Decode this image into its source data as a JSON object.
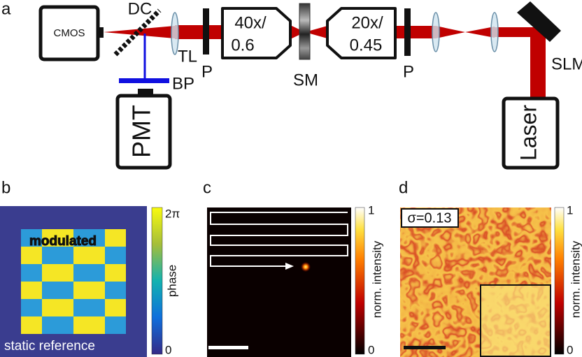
{
  "panel_labels": [
    "a",
    "b",
    "c",
    "d"
  ],
  "setup": {
    "cmos": "CMOS",
    "dc": "DC",
    "tl": "TL",
    "p1": "P",
    "objective1": [
      "40x/",
      "0.6"
    ],
    "sm": "SM",
    "objective2": [
      "20x/",
      "0.45"
    ],
    "p2": "P",
    "slm": "SLM",
    "bp": "BP",
    "pmt": "PMT",
    "laser": "Laser"
  },
  "panel_b": {
    "overlay": "modulated",
    "reference": "static reference",
    "colorbar": {
      "label": "phase",
      "max": "2π",
      "min": 0
    }
  },
  "panel_c": {
    "colorbar": {
      "label": "norm. intensity",
      "max": 1,
      "min": 0
    }
  },
  "panel_d": {
    "annotation": "σ=0.13",
    "colorbar": {
      "label": "norm. intensity",
      "max": 1,
      "min": 0
    }
  }
}
